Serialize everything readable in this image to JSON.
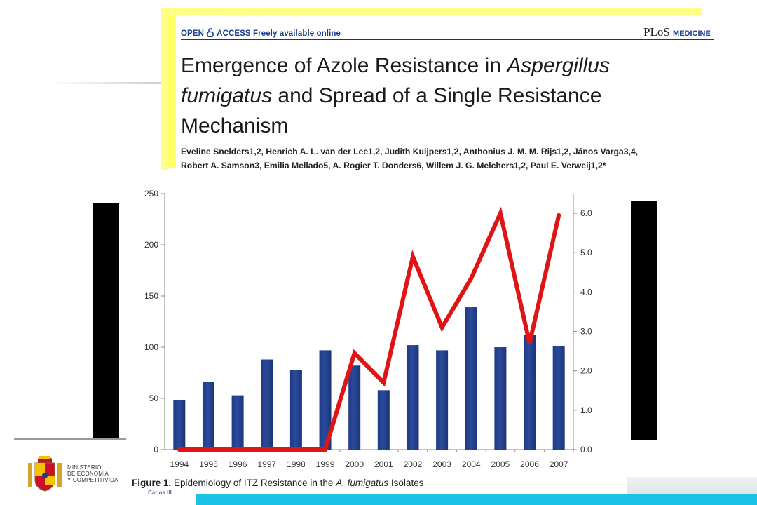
{
  "header": {
    "open_access": "OPEN",
    "access_text": "ACCESS Freely available online",
    "journal_plos": "PLoS",
    "journal_medicine": "MEDICINE",
    "title_part1": "Emergence of Azole Resistance in ",
    "title_italic1": "Aspergillus",
    "title_italic2": "fumigatus",
    "title_part2": " and Spread of a Single Resistance Mechanism",
    "authors_line1": "Eveline Snelders1,2, Henrich A. L. van der Lee1,2, Judith Kuijpers1,2, Anthonius J. M. M. Rijs1,2, János Varga3,4,",
    "authors_line2": "Robert A. Samson3, Emilia Mellado5, A. Rogier T. Donders6, Willem J. G. Melchers1,2, Paul E. Verweij1,2*"
  },
  "caption": {
    "label": "Figure 1.",
    "text_before": " Epidemiology of ITZ Resistance in the ",
    "italic": "A. fumigatus",
    "text_after": " Isolates"
  },
  "logo": {
    "ministry_line1": "MINISTERIO",
    "ministry_line2": "DE ECONOMÍA",
    "ministry_line3": "Y COMPETITIVIDA",
    "institute": "Carlos III"
  },
  "colors": {
    "bar": "#2c4a9a",
    "line": "#e01414",
    "highlight": "#ffff88",
    "band": "#19c2e6"
  },
  "chart_data": {
    "type": "bar",
    "categories": [
      "1994",
      "1995",
      "1996",
      "1997",
      "1998",
      "1999",
      "2000",
      "2001",
      "2002",
      "2003",
      "2004",
      "2005",
      "2006",
      "2007"
    ],
    "series": [
      {
        "type": "bar",
        "axis": "left",
        "values": [
          48,
          66,
          53,
          88,
          78,
          97,
          82,
          58,
          102,
          97,
          139,
          100,
          112,
          101
        ]
      },
      {
        "type": "line",
        "axis": "right",
        "values": [
          0.0,
          0.0,
          0.0,
          0.0,
          0.0,
          0.0,
          2.45,
          1.7,
          4.9,
          3.1,
          4.35,
          6.0,
          2.7,
          5.95
        ]
      }
    ],
    "ylim_left": [
      0,
      250
    ],
    "yticks_left": [
      0,
      50,
      100,
      150,
      200,
      250
    ],
    "ylim_right": [
      0,
      6.5
    ],
    "yticks_right": [
      "0.0",
      "1.0",
      "2.0",
      "3.0",
      "4.0",
      "5.0",
      "6.0"
    ],
    "grid": false
  }
}
